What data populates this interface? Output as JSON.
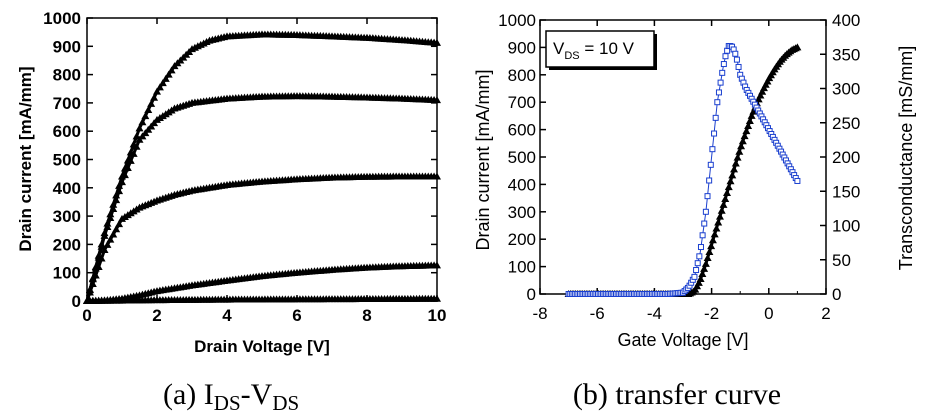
{
  "chart_data": [
    {
      "type": "line",
      "xlabel": "Drain Voltage [V]",
      "ylabel": "Drain current [mA/mm]",
      "xlim": [
        0,
        10
      ],
      "ylim": [
        0,
        1000
      ],
      "xticks": [
        "0",
        "2",
        "4",
        "6",
        "8",
        "10"
      ],
      "yticks": [
        "0",
        "100",
        "200",
        "300",
        "400",
        "500",
        "600",
        "700",
        "800",
        "900",
        "1000"
      ],
      "caption": {
        "prefix": "(a) I",
        "sub1": "DS",
        "mid": "-V",
        "sub2": "DS"
      },
      "series": [
        {
          "x": [
            0,
            0.5,
            1,
            1.5,
            2,
            2.5,
            3,
            3.5,
            4,
            5,
            6,
            7,
            8,
            9,
            10
          ],
          "y": [
            0,
            240,
            440,
            610,
            740,
            830,
            890,
            920,
            935,
            942,
            940,
            935,
            930,
            922,
            912
          ]
        },
        {
          "x": [
            0,
            0.5,
            1,
            1.5,
            2,
            2.5,
            3,
            4,
            5,
            6,
            7,
            8,
            9,
            10
          ],
          "y": [
            0,
            230,
            420,
            570,
            640,
            680,
            700,
            715,
            722,
            724,
            722,
            719,
            715,
            710
          ]
        },
        {
          "x": [
            0,
            0.5,
            1,
            1.5,
            2,
            2.5,
            3,
            4,
            5,
            6,
            7,
            8,
            9,
            10
          ],
          "y": [
            0,
            180,
            290,
            330,
            355,
            375,
            390,
            410,
            422,
            430,
            436,
            439,
            440,
            440
          ]
        },
        {
          "x": [
            0,
            0.5,
            1,
            1.5,
            2,
            3,
            4,
            5,
            6,
            7,
            8,
            9,
            10
          ],
          "y": [
            0,
            2,
            8,
            20,
            35,
            55,
            72,
            88,
            100,
            110,
            118,
            123,
            126
          ]
        },
        {
          "x": [
            0,
            2,
            4,
            6,
            8,
            10
          ],
          "y": [
            0,
            3,
            5,
            6,
            7,
            8
          ]
        }
      ]
    },
    {
      "type": "line",
      "xlabel": "Gate Voltage [V]",
      "ylabel": "Drain current [mA/mm]",
      "ylabel_right": "Transconductance [mS/mm]",
      "xlim": [
        -8,
        2
      ],
      "ylim": [
        0,
        1000
      ],
      "ylim_right": [
        0,
        400
      ],
      "xticks": [
        "-8",
        "-6",
        "-4",
        "-2",
        "0",
        "2"
      ],
      "yticks": [
        "0",
        "100",
        "200",
        "300",
        "400",
        "500",
        "600",
        "700",
        "800",
        "900",
        "1000"
      ],
      "yticks_right": [
        "0",
        "50",
        "100",
        "150",
        "200",
        "250",
        "300",
        "350",
        "400"
      ],
      "legend": {
        "prefix": "V",
        "sub": "DS",
        "suffix": " = 10 V"
      },
      "caption": "(b) transfer curve",
      "colors": {
        "current": "#000000",
        "transconductance": "#1a3fcf"
      },
      "series": [
        {
          "axis": "left",
          "x": [
            -7,
            -5,
            -3.5,
            -2.8,
            -2.6,
            -2.4,
            -2.2,
            -2,
            -1.8,
            -1.6,
            -1.4,
            -1.2,
            -1,
            -0.8,
            -0.6,
            -0.4,
            -0.2,
            0,
            0.2,
            0.4,
            0.6,
            0.8,
            1
          ],
          "y": [
            0,
            0,
            0,
            0,
            10,
            50,
            110,
            180,
            250,
            320,
            390,
            460,
            530,
            590,
            650,
            700,
            745,
            785,
            820,
            850,
            873,
            890,
            900
          ]
        },
        {
          "axis": "right",
          "x": [
            -7,
            -5,
            -3.5,
            -3,
            -2.8,
            -2.6,
            -2.4,
            -2.2,
            -2,
            -1.8,
            -1.6,
            -1.5,
            -1.4,
            -1.3,
            -1.2,
            -1.1,
            -1,
            -0.8,
            -0.6,
            -0.4,
            -0.2,
            0,
            0.2,
            0.4,
            0.6,
            0.8,
            1
          ],
          "y": [
            0,
            0,
            0,
            2,
            10,
            25,
            60,
            120,
            200,
            280,
            330,
            350,
            362,
            362,
            355,
            340,
            320,
            300,
            285,
            270,
            255,
            240,
            225,
            210,
            195,
            180,
            165
          ]
        }
      ]
    }
  ]
}
